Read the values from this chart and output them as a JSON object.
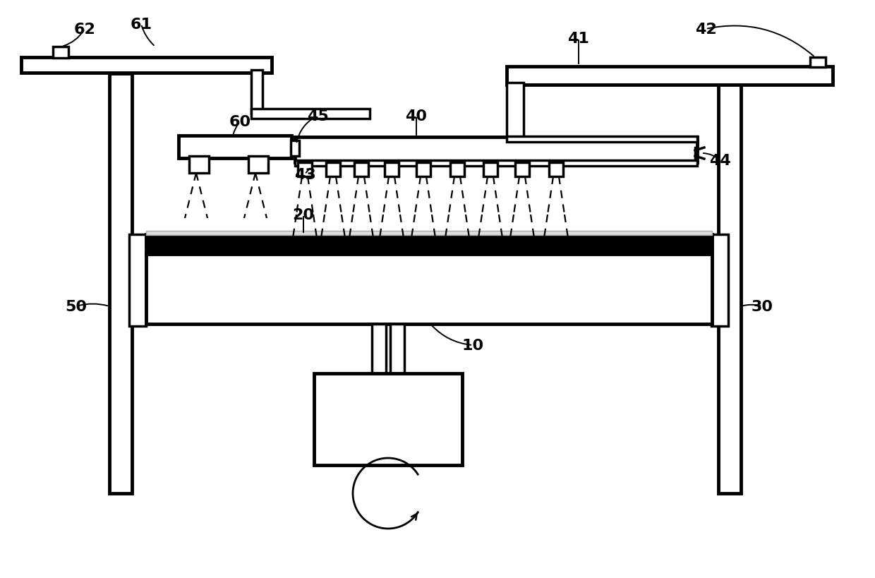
{
  "bg_color": "#ffffff",
  "lw_thin": 1.8,
  "lw_med": 2.5,
  "lw_thick": 3.5,
  "label_fs": 16
}
